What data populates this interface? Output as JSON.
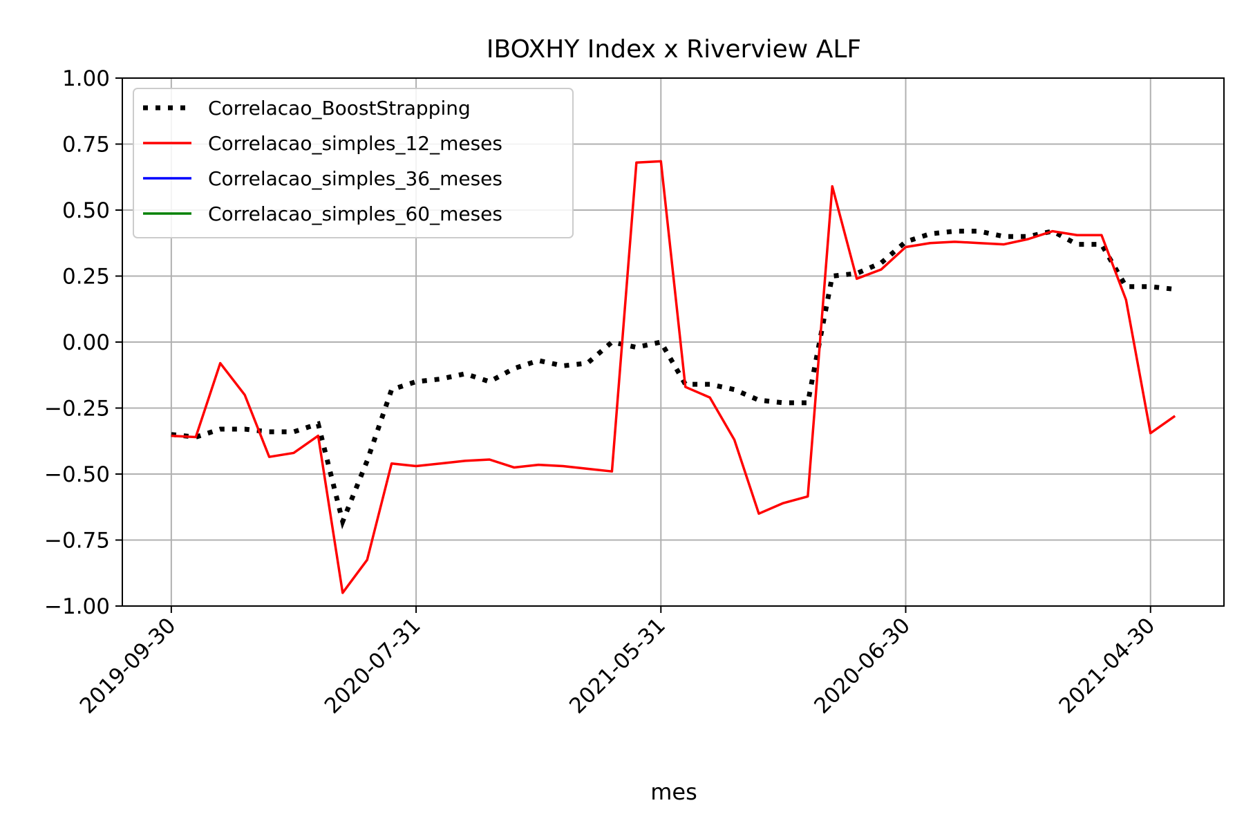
{
  "chart_data": {
    "type": "line",
    "title": "IBOXHY Index x Riverview ALF",
    "xlabel": "mes",
    "ylabel": "",
    "ylim": [
      -1.0,
      1.0
    ],
    "y_ticks": [
      "1.00",
      "0.75",
      "0.50",
      "0.25",
      "0.00",
      "−0.25",
      "−0.50",
      "−0.75",
      "−1.00"
    ],
    "y_tick_values": [
      1.0,
      0.75,
      0.5,
      0.25,
      0.0,
      -0.25,
      -0.5,
      -0.75,
      -1.0
    ],
    "x_ticks": [
      {
        "index": 0,
        "label": "2019-09-30"
      },
      {
        "index": 10,
        "label": "2020-07-31"
      },
      {
        "index": 20,
        "label": "2021-05-31"
      },
      {
        "index": 30,
        "label": "2020-06-30"
      },
      {
        "index": 40,
        "label": "2021-04-30"
      }
    ],
    "xlim": [
      -2,
      43
    ],
    "grid": true,
    "legend_position": "upper-left",
    "series": [
      {
        "name": "Correlacao_BoostStrapping",
        "color": "#000000",
        "style": "dotted",
        "x": [
          0,
          1,
          2,
          3,
          4,
          5,
          6,
          7,
          8,
          9,
          10,
          11,
          12,
          13,
          14,
          15,
          16,
          17,
          18,
          19,
          20,
          21,
          22,
          23,
          24,
          25,
          26,
          27,
          28,
          29,
          30,
          31,
          32,
          33,
          34,
          35,
          36,
          37,
          38,
          39,
          40,
          41
        ],
        "values": [
          -0.35,
          -0.36,
          -0.33,
          -0.33,
          -0.34,
          -0.34,
          -0.31,
          -0.68,
          -0.45,
          -0.18,
          -0.15,
          -0.14,
          -0.12,
          -0.15,
          -0.1,
          -0.07,
          -0.09,
          -0.08,
          0.0,
          -0.02,
          0.0,
          -0.16,
          -0.16,
          -0.18,
          -0.22,
          -0.23,
          -0.23,
          0.25,
          0.26,
          0.3,
          0.38,
          0.41,
          0.42,
          0.42,
          0.4,
          0.4,
          0.42,
          0.37,
          0.37,
          0.21,
          0.21,
          0.2
        ]
      },
      {
        "name": "Correlacao_simples_12_meses",
        "color": "#ff0000",
        "style": "solid",
        "x": [
          0,
          1,
          2,
          3,
          4,
          5,
          6,
          7,
          8,
          9,
          10,
          11,
          12,
          13,
          14,
          15,
          16,
          17,
          18,
          19,
          20,
          21,
          22,
          23,
          24,
          25,
          26,
          27,
          28,
          29,
          30,
          31,
          32,
          33,
          34,
          35,
          36,
          37,
          38,
          39,
          40,
          41
        ],
        "values": [
          -0.355,
          -0.36,
          -0.08,
          -0.2,
          -0.435,
          -0.42,
          -0.355,
          -0.95,
          -0.825,
          -0.46,
          -0.47,
          -0.46,
          -0.45,
          -0.445,
          -0.475,
          -0.465,
          -0.47,
          -0.48,
          -0.49,
          0.68,
          0.685,
          -0.17,
          -0.21,
          -0.37,
          -0.65,
          -0.61,
          -0.585,
          0.59,
          0.24,
          0.275,
          0.36,
          0.375,
          0.38,
          0.375,
          0.37,
          0.39,
          0.42,
          0.405,
          0.405,
          0.16,
          -0.345,
          -0.28
        ]
      },
      {
        "name": "Correlacao_simples_36_meses",
        "color": "#0000ff",
        "style": "solid",
        "x": [],
        "values": []
      },
      {
        "name": "Correlacao_simples_60_meses",
        "color": "#008000",
        "style": "solid",
        "x": [],
        "values": []
      }
    ]
  }
}
